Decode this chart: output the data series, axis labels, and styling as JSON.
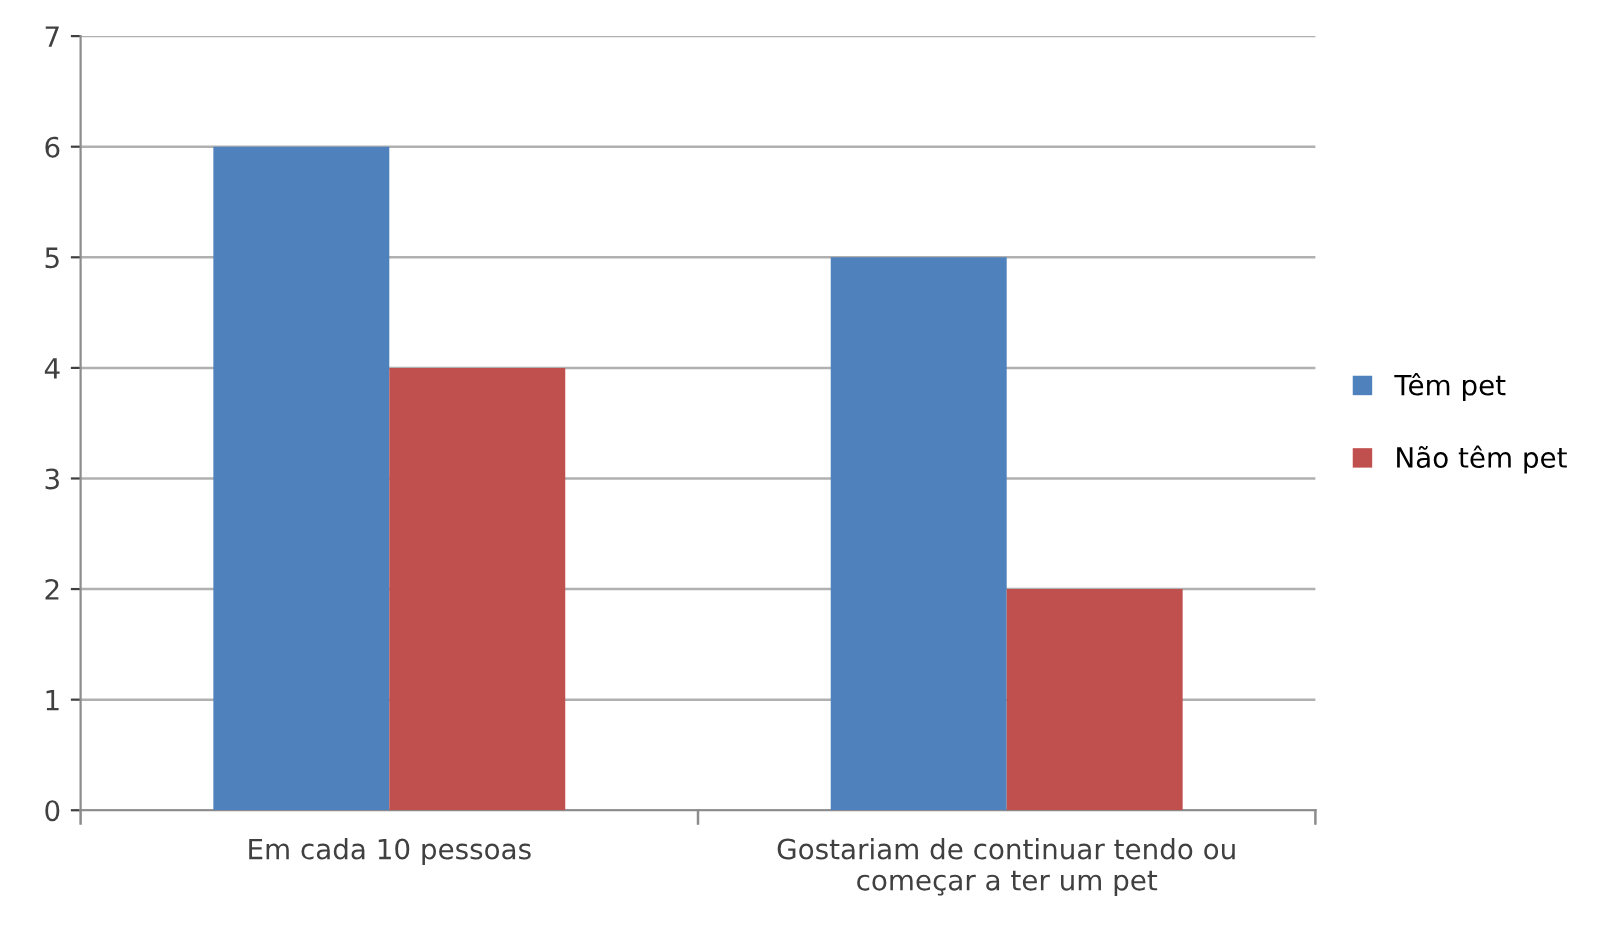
{
  "chart_data": {
    "type": "bar",
    "categories": [
      "Em cada 10 pessoas",
      "Gostariam de continuar tendo ou\ncomeçar a ter um pet"
    ],
    "series": [
      {
        "name": "Têm pet",
        "color": "#4f81bd",
        "values": [
          6,
          5
        ]
      },
      {
        "name": "Não têm pet",
        "color": "#c0504d",
        "values": [
          4,
          2
        ]
      }
    ],
    "ylim": [
      0,
      7
    ],
    "yticks": [
      0,
      1,
      2,
      3,
      4,
      5,
      6,
      7
    ],
    "grid": "y",
    "legend": "right"
  }
}
